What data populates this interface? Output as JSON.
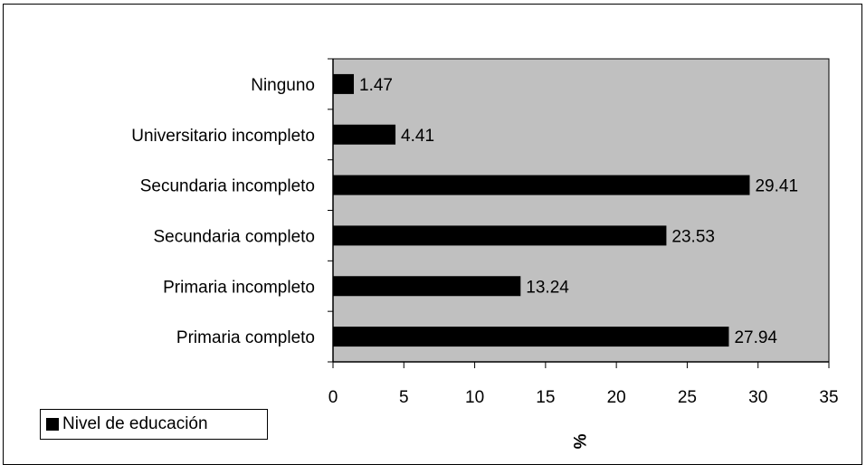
{
  "chart_data": {
    "type": "bar",
    "orientation": "horizontal",
    "title": "",
    "categories": [
      "Ninguno",
      "Universitario incompleto",
      "Secundaria incompleto",
      "Secundaria completo",
      "Primaria incompleto",
      "Primaria completo"
    ],
    "series": [
      {
        "name": "Nivel de educación",
        "values": [
          1.47,
          4.41,
          29.41,
          23.53,
          13.24,
          27.94
        ],
        "color": "#000000"
      }
    ],
    "data_labels": [
      "1.47",
      "4.41",
      "29.41",
      "23.53",
      "13.24",
      "27.94"
    ],
    "xlabel": "%",
    "ylabel": "",
    "xlim": [
      0,
      35
    ],
    "xticks": [
      0,
      5,
      10,
      15,
      20,
      25,
      30,
      35
    ],
    "grid": false,
    "plot_background": "#c0c0c0",
    "legend": {
      "position": "bottom-left"
    }
  }
}
